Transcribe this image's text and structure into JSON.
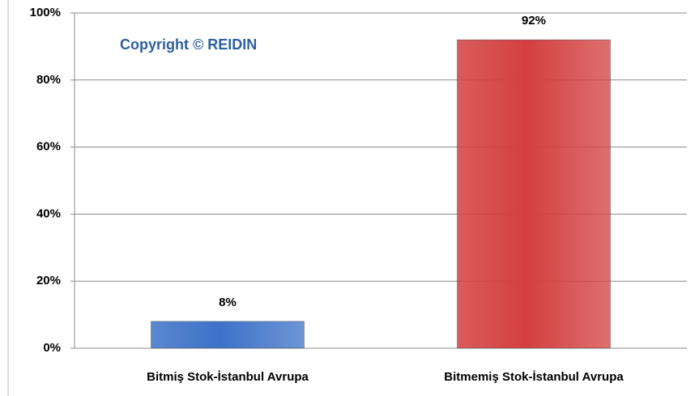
{
  "chart_data": {
    "type": "bar",
    "annotation": "Copyright © REIDIN",
    "categories": [
      "Bitmiş Stok-İstanbul Avrupa",
      "Bitmemiş Stok-İstanbul Avrupa"
    ],
    "values": [
      8,
      92
    ],
    "value_labels": [
      "8%",
      "92%"
    ],
    "colors": [
      "#3d72c8",
      "#d33f3f"
    ],
    "ylim": [
      0,
      100
    ],
    "yticks": [
      {
        "value": 0,
        "label": "0%"
      },
      {
        "value": 20,
        "label": "20%"
      },
      {
        "value": 40,
        "label": "40%"
      },
      {
        "value": 60,
        "label": "60%"
      },
      {
        "value": 80,
        "label": "80%"
      },
      {
        "value": 100,
        "label": "100%"
      }
    ],
    "grid": true
  }
}
